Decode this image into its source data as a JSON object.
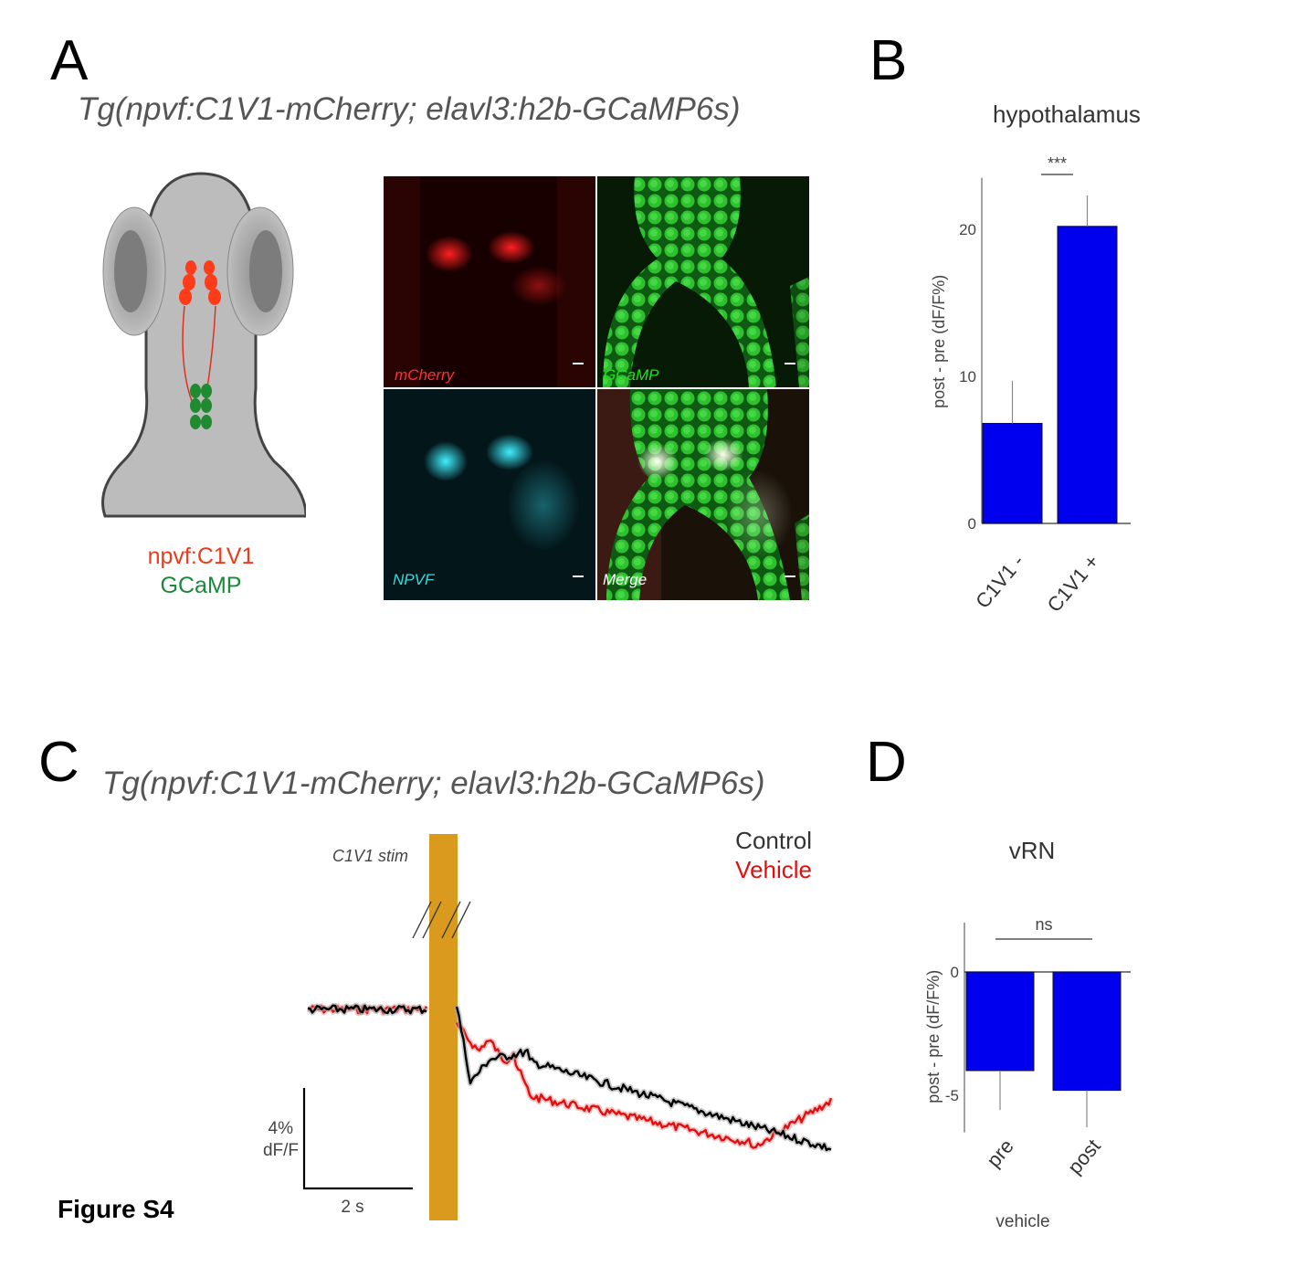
{
  "figure_label": "Figure S4",
  "colors": {
    "bar": "#0000ee",
    "stim": "#d99a1e",
    "red_label": "#ee3a1c",
    "green_label": "#1a8a3a",
    "control": "#000000",
    "vehicle": "#e01010"
  },
  "panel_a": {
    "letter": "A",
    "genotype": "Tg(npvf:C1V1-mCherry; elavl3:h2b-GCaMP6s)",
    "schematic_label_1": "npvf:C1V1",
    "schematic_label_2": "GCaMP",
    "micrographs": [
      {
        "label": "mCherry",
        "label_color": "#ff3030"
      },
      {
        "label": "GCaMP",
        "label_color": "#22dd22"
      },
      {
        "label": "NPVF",
        "label_color": "#33dddd"
      },
      {
        "label": "Merge",
        "label_color": "#ffffff"
      }
    ]
  },
  "panel_c": {
    "letter": "C",
    "genotype": "Tg(npvf:C1V1-mCherry; elavl3:h2b-GCaMP6s)",
    "stim_label": "C1V1 stim",
    "legend": [
      {
        "name": "Control",
        "color": "#333333"
      },
      {
        "name": "Vehicle",
        "color": "#e01010"
      }
    ],
    "scale_y_label_1": "4%",
    "scale_y_label_2": "dF/F",
    "scale_x_label": "2 s"
  },
  "panel_d": {
    "letter": "D"
  },
  "chart_data": [
    {
      "panel": "B",
      "letter": "B",
      "type": "bar",
      "title": "hypothalamus",
      "ylabel": "post - pre (dF/F%)",
      "xlabel": "",
      "categories": [
        "C1V1 -",
        "C1V1 +"
      ],
      "values": [
        6.8,
        20.2
      ],
      "errors": [
        2.9,
        2.1
      ],
      "ylim": [
        0,
        23.5
      ],
      "yticks": [
        0,
        10,
        20
      ],
      "significance": "***"
    },
    {
      "panel": "D",
      "letter": "D",
      "type": "bar",
      "title": "vRN",
      "ylabel": "post - pre (dF/F%)",
      "xlabel": "vehicle",
      "categories": [
        "pre",
        "post"
      ],
      "values": [
        -4.0,
        -4.8
      ],
      "errors": [
        1.6,
        1.5
      ],
      "ylim": [
        -6.5,
        2.0
      ],
      "yticks": [
        -5,
        0
      ],
      "significance": "ns"
    }
  ]
}
